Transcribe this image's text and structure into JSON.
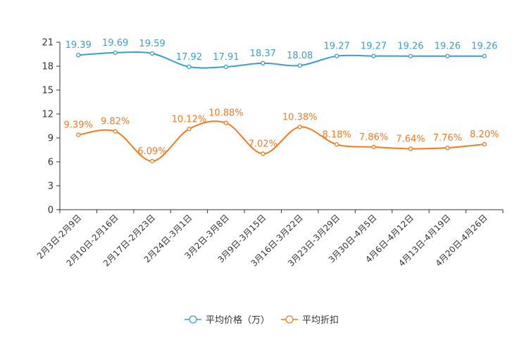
{
  "chart_data": {
    "type": "line",
    "categories": [
      "2月3日-2月9日",
      "2月10日-2月16日",
      "2月17日-2月23日",
      "2月24日-3月1日",
      "3月2日-3月8日",
      "3月9日-3月15日",
      "3月16日-3月22日",
      "3月23日-3月29日",
      "3月30日-4月5日",
      "4月6日-4月12日",
      "4月13日-4月19日",
      "4月20日-4月26日"
    ],
    "ylim": [
      0,
      21
    ],
    "yticks": [
      0,
      3,
      6,
      9,
      12,
      15,
      18,
      21
    ],
    "legend_position": "bottom",
    "series": [
      {
        "name": "平均价格（万）",
        "color": "#3a9ed0",
        "values": [
          19.39,
          19.69,
          19.59,
          17.92,
          17.91,
          18.37,
          18.08,
          19.27,
          19.27,
          19.26,
          19.26,
          19.26
        ],
        "labels": [
          "19.39",
          "19.69",
          "19.59",
          "17.92",
          "17.91",
          "18.37",
          "18.08",
          "19.27",
          "19.27",
          "19.26",
          "19.26",
          "19.26"
        ]
      },
      {
        "name": "平均折扣",
        "color": "#f47a1f",
        "values": [
          9.39,
          9.82,
          6.09,
          10.12,
          10.88,
          7.02,
          10.38,
          8.18,
          7.86,
          7.64,
          7.76,
          8.2
        ],
        "labels": [
          "9.39%",
          "9.82%",
          "6.09%",
          "10.12%",
          "10.88%",
          "7.02%",
          "10.38%",
          "8.18%",
          "7.86%",
          "7.64%",
          "7.76%",
          "8.20%"
        ]
      }
    ]
  }
}
